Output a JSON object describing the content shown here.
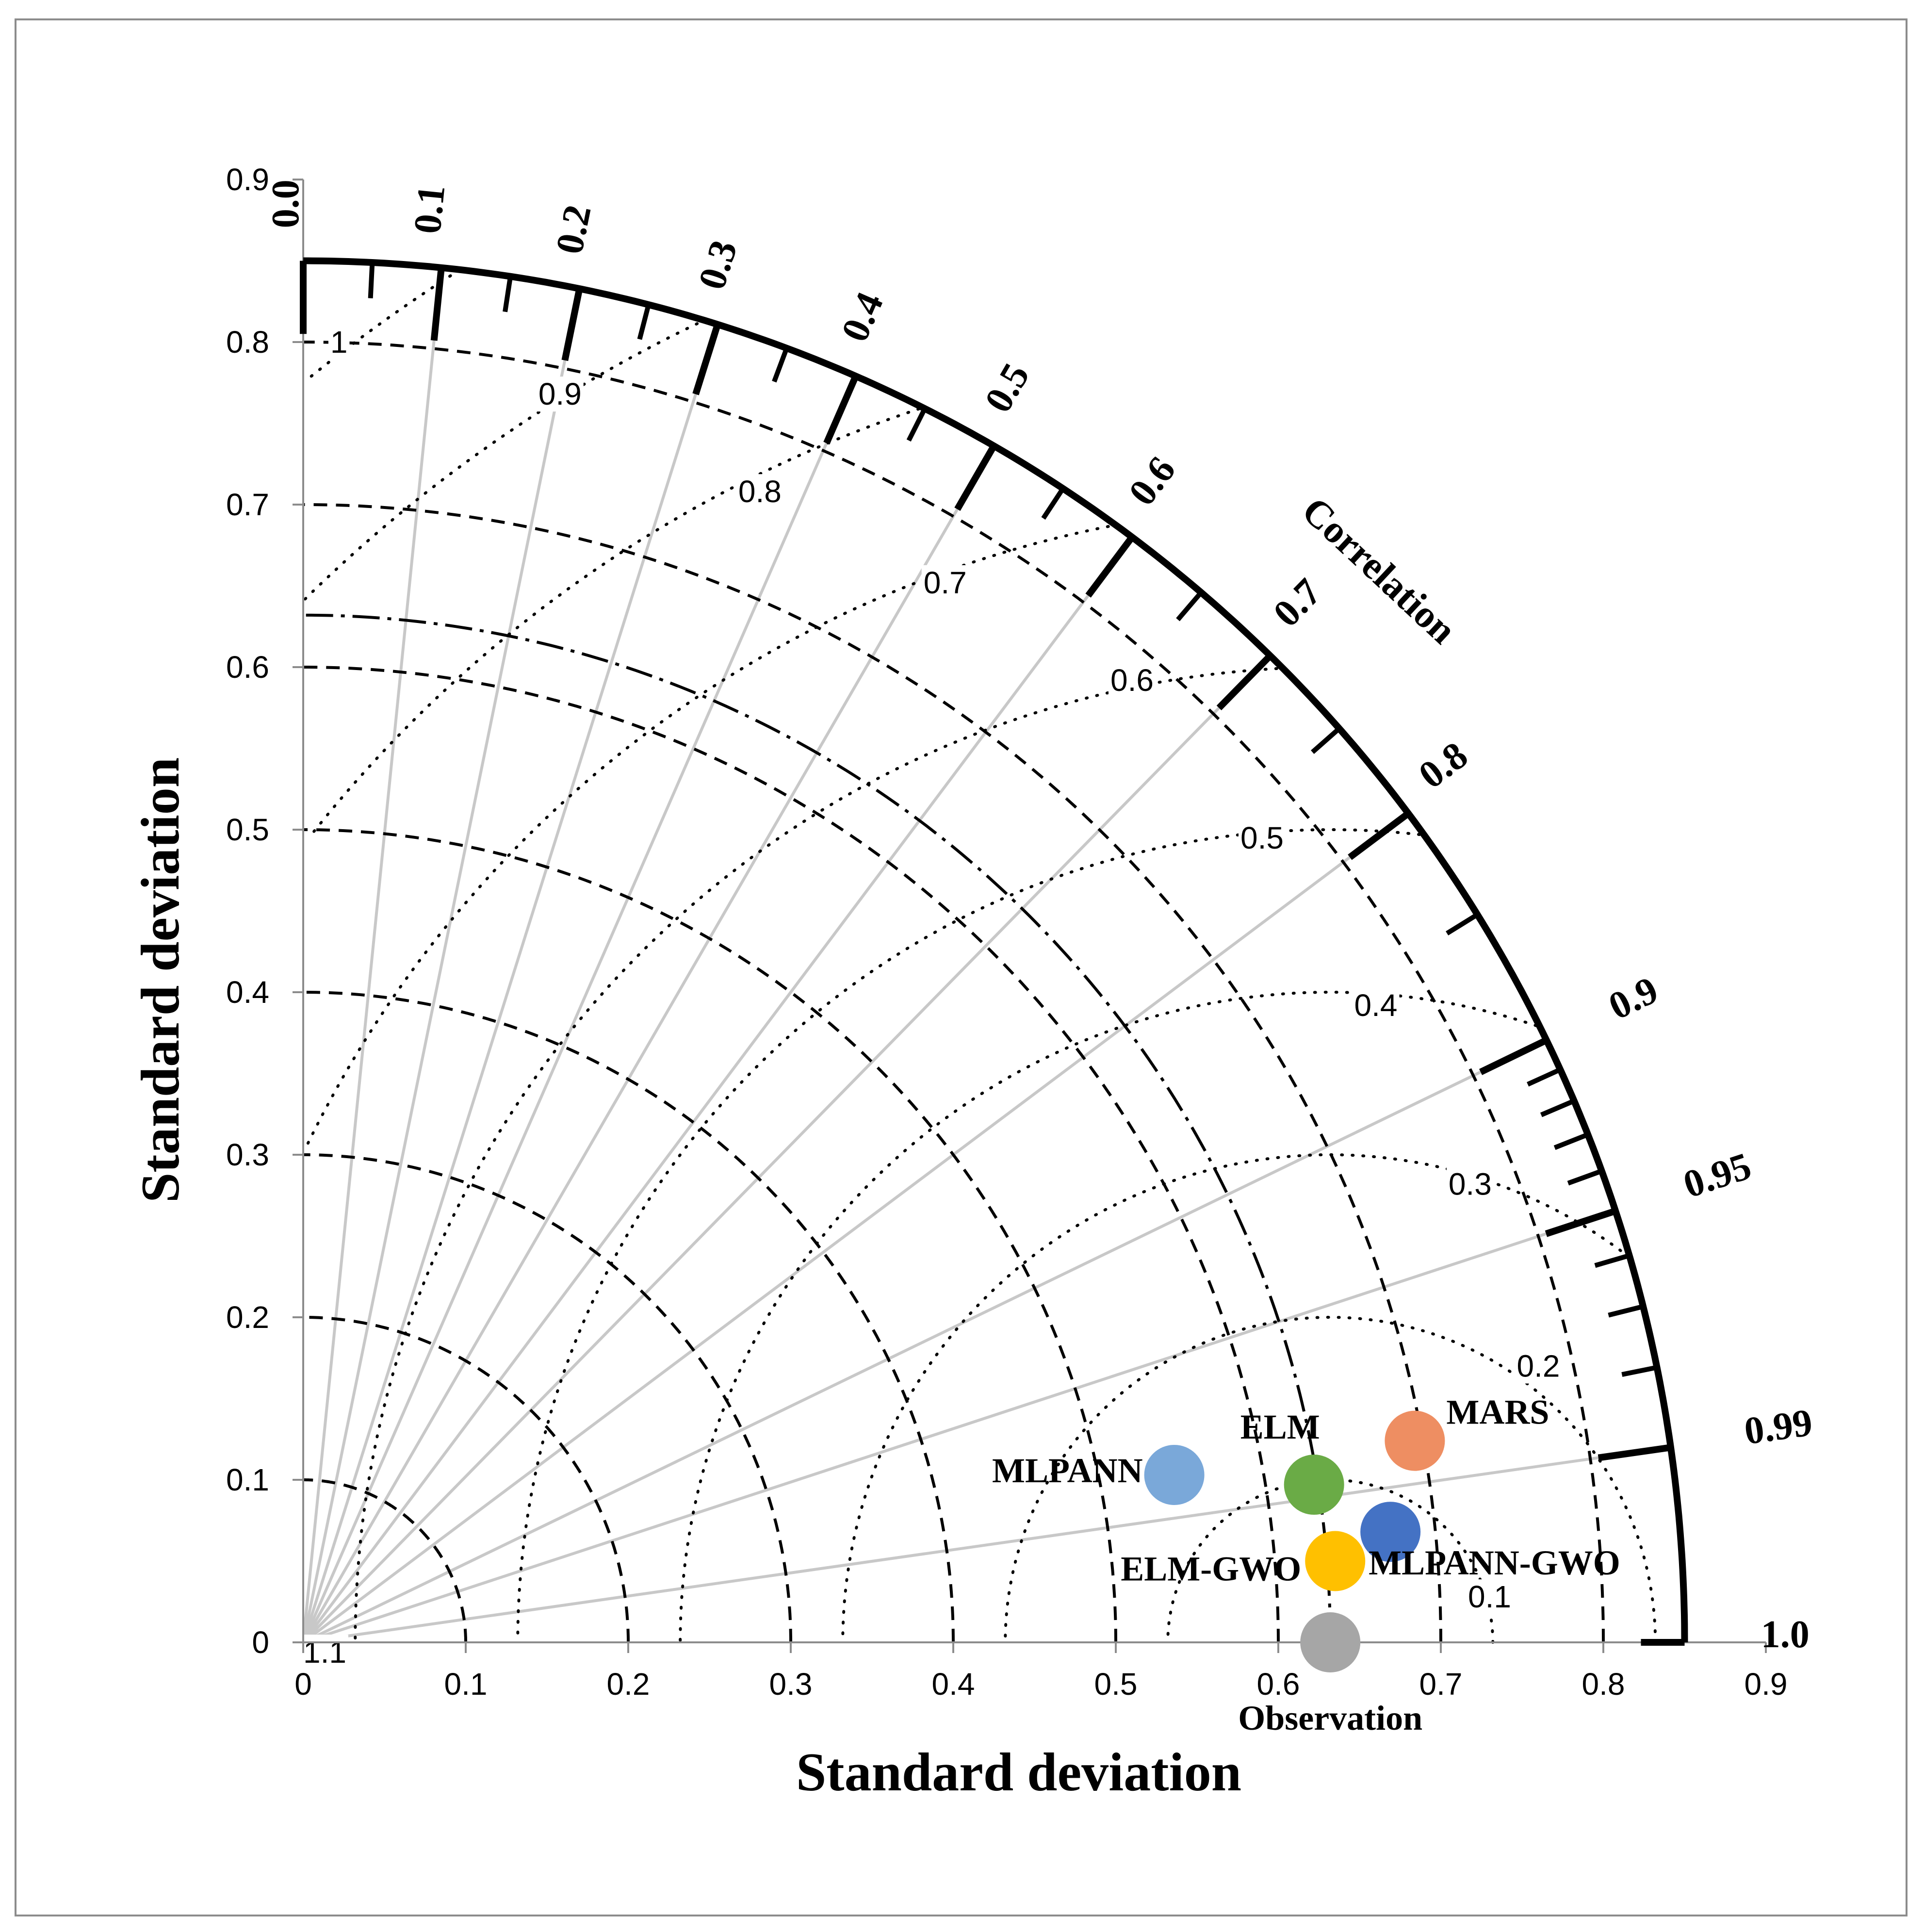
{
  "chart_data": {
    "type": "scatter",
    "subtype": "taylor-diagram",
    "xlabel": "Standard deviation",
    "ylabel": "Standard deviation",
    "correlation_label": "Correlation",
    "xlim": [
      0,
      0.9
    ],
    "ylim": [
      0,
      0.9
    ],
    "x_ticks": [
      "0",
      "0.1",
      "0.2",
      "0.3",
      "0.4",
      "0.5",
      "0.6",
      "0.7",
      "0.8",
      "0.9"
    ],
    "y_ticks": [
      "0",
      "0.1",
      "0.2",
      "0.3",
      "0.4",
      "0.5",
      "0.6",
      "0.7",
      "0.8",
      "0.9"
    ],
    "std_max": 0.85,
    "reference_std": 0.632,
    "correlation_ticks": [
      {
        "value": 0.0,
        "label": "0.0"
      },
      {
        "value": 0.1,
        "label": "0.1"
      },
      {
        "value": 0.2,
        "label": "0.2"
      },
      {
        "value": 0.3,
        "label": "0.3"
      },
      {
        "value": 0.4,
        "label": "0.4"
      },
      {
        "value": 0.5,
        "label": "0.5"
      },
      {
        "value": 0.6,
        "label": "0.6"
      },
      {
        "value": 0.7,
        "label": "0.7"
      },
      {
        "value": 0.8,
        "label": "0.8"
      },
      {
        "value": 0.9,
        "label": "0.9"
      },
      {
        "value": 0.95,
        "label": "0.95"
      },
      {
        "value": 0.99,
        "label": "0.99"
      },
      {
        "value": 1.0,
        "label": "1.0"
      }
    ],
    "correlation_minor_ticks": [
      0.05,
      0.15,
      0.25,
      0.35,
      0.45,
      0.55,
      0.65,
      0.75,
      0.85,
      0.91,
      0.92,
      0.93,
      0.94,
      0.96,
      0.97,
      0.98
    ],
    "correlation_radial_lines": [
      0.1,
      0.2,
      0.3,
      0.4,
      0.5,
      0.6,
      0.7,
      0.8,
      0.9,
      0.95,
      0.99
    ],
    "std_arcs": [
      0.1,
      0.2,
      0.3,
      0.4,
      0.5,
      0.6,
      0.7,
      0.8
    ],
    "rmsd_arcs": [
      {
        "value": 0.1,
        "label": "0.1"
      },
      {
        "value": 0.2,
        "label": "0.2"
      },
      {
        "value": 0.3,
        "label": "0.3"
      },
      {
        "value": 0.4,
        "label": "0.4"
      },
      {
        "value": 0.5,
        "label": "0.5"
      },
      {
        "value": 0.6,
        "label": "0.6"
      },
      {
        "value": 0.7,
        "label": "0.7"
      },
      {
        "value": 0.8,
        "label": "0.8"
      },
      {
        "value": 0.9,
        "label": "0.9"
      },
      {
        "value": 1.0,
        "label": "1"
      },
      {
        "value": 1.1,
        "label": "1.1"
      }
    ],
    "points": [
      {
        "name": "MLPANN",
        "x": 0.536,
        "y": 0.103,
        "color": "#7aa8d9"
      },
      {
        "name": "ELM",
        "x": 0.622,
        "y": 0.097,
        "color": "#6aab46"
      },
      {
        "name": "MARS",
        "x": 0.684,
        "y": 0.124,
        "color": "#ee8e62"
      },
      {
        "name": "MLPANN-GWO",
        "x": 0.669,
        "y": 0.068,
        "color": "#4472c4"
      },
      {
        "name": "ELM-GWO",
        "x": 0.635,
        "y": 0.05,
        "color": "#ffc000"
      },
      {
        "name": "Observation",
        "x": 0.632,
        "y": 0.0,
        "color": "#a6a6a6"
      }
    ]
  }
}
